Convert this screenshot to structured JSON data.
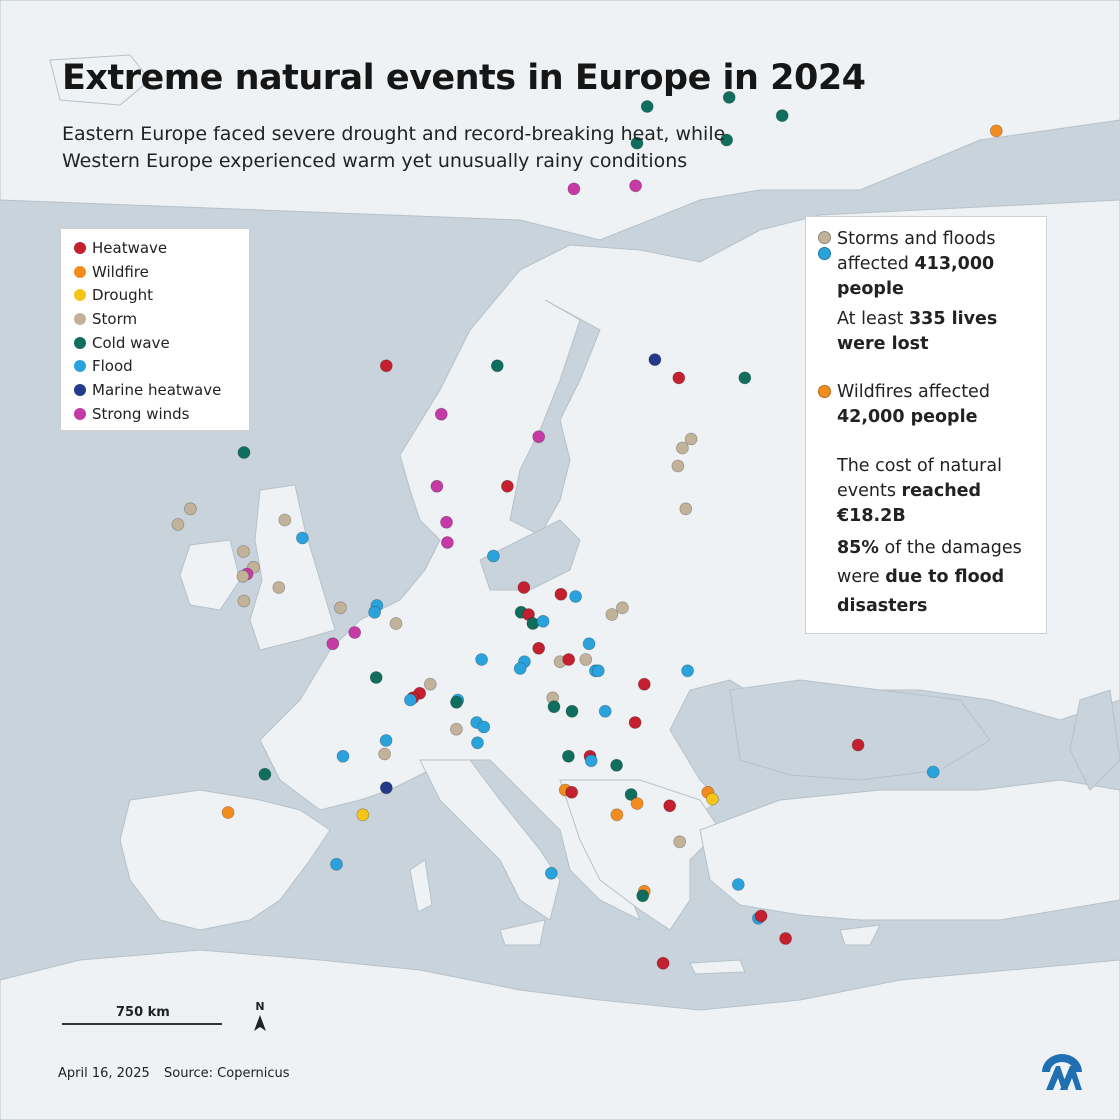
{
  "title": "Extreme natural events in Europe in 2024",
  "subtitle": {
    "line1": "Eastern Europe faced severe drought and record-breaking heat, while",
    "line2": "Western Europe experienced warm yet unusually rainy conditions"
  },
  "colors": {
    "heatwave": "#c4202f",
    "wildfire": "#f28c1e",
    "drought": "#f5c518",
    "storm": "#c2b29a",
    "cold_wave": "#0f6e5d",
    "flood": "#2aa3dc",
    "marine_heatwave": "#233a8c",
    "strong_winds": "#c53aa6",
    "sea": "#c9d3db",
    "land": "#eef2f4"
  },
  "legend": [
    {
      "key": "heatwave",
      "label": "Heatwave"
    },
    {
      "key": "wildfire",
      "label": "Wildfire"
    },
    {
      "key": "drought",
      "label": "Drought"
    },
    {
      "key": "storm",
      "label": "Storm"
    },
    {
      "key": "cold_wave",
      "label": "Cold wave"
    },
    {
      "key": "flood",
      "label": "Flood"
    },
    {
      "key": "marine_heatwave",
      "label": "Marine heatwave"
    },
    {
      "key": "strong_winds",
      "label": "Strong winds"
    }
  ],
  "info": {
    "storms_text": "Storms and floods affected",
    "storms_value": "413,000 people",
    "lives_prefix": "At least",
    "lives_value": "335 lives were lost",
    "wildfire_text": "Wildfires affected",
    "wildfire_value": "42,000 people",
    "cost_text": "The cost of natural events",
    "cost_bold": "reached €18.2B",
    "damages_pct": "85%",
    "damages_text": "of the damages were",
    "damages_bold": "due to flood disasters"
  },
  "scale_label": "750 km",
  "north_label": "N",
  "footer": {
    "date": "April 16, 2025",
    "source": "Source: Copernicus"
  },
  "events": [
    {
      "type": "cold_wave",
      "lon": 21.0,
      "lat": 69.5
    },
    {
      "type": "cold_wave",
      "lon": 25.5,
      "lat": 69.8
    },
    {
      "type": "cold_wave",
      "lon": 28.5,
      "lat": 69.2
    },
    {
      "type": "cold_wave",
      "lon": 20.5,
      "lat": 68.3
    },
    {
      "type": "cold_wave",
      "lon": 25.5,
      "lat": 68.4
    },
    {
      "type": "wildfire",
      "lon": 40.5,
      "lat": 68.7
    },
    {
      "type": "strong_winds",
      "lon": 17.0,
      "lat": 66.8
    },
    {
      "type": "strong_winds",
      "lon": 20.5,
      "lat": 66.9
    },
    {
      "type": "heatwave",
      "lon": 5.8,
      "lat": 61.0
    },
    {
      "type": "cold_wave",
      "lon": 12.5,
      "lat": 61.0
    },
    {
      "type": "marine_heatwave",
      "lon": 22.0,
      "lat": 61.2
    },
    {
      "type": "heatwave",
      "lon": 23.5,
      "lat": 60.6
    },
    {
      "type": "cold_wave",
      "lon": 27.5,
      "lat": 60.6
    },
    {
      "type": "strong_winds",
      "lon": 9.0,
      "lat": 59.2
    },
    {
      "type": "strong_winds",
      "lon": 15.0,
      "lat": 58.2
    },
    {
      "type": "cold_wave",
      "lon": -3.5,
      "lat": 57.5
    },
    {
      "type": "storm",
      "lon": 24.5,
      "lat": 58.1
    },
    {
      "type": "storm",
      "lon": 24.0,
      "lat": 57.7
    },
    {
      "type": "storm",
      "lon": 23.8,
      "lat": 56.9
    },
    {
      "type": "storm",
      "lon": -7.5,
      "lat": 55.0
    },
    {
      "type": "storm",
      "lon": -8.5,
      "lat": 54.3
    },
    {
      "type": "storm",
      "lon": -1.5,
      "lat": 54.5
    },
    {
      "type": "flood",
      "lon": -0.5,
      "lat": 53.7
    },
    {
      "type": "strong_winds",
      "lon": 8.5,
      "lat": 56.0
    },
    {
      "type": "heatwave",
      "lon": 13.0,
      "lat": 56.0
    },
    {
      "type": "storm",
      "lon": 24.5,
      "lat": 55.0
    },
    {
      "type": "strong_winds",
      "lon": 9.0,
      "lat": 54.4
    },
    {
      "type": "strong_winds",
      "lon": 9.0,
      "lat": 53.5
    },
    {
      "type": "flood",
      "lon": 12.0,
      "lat": 52.9
    },
    {
      "type": "storm",
      "lon": -4.5,
      "lat": 53.1
    },
    {
      "type": "storm",
      "lon": -4.0,
      "lat": 52.4
    },
    {
      "type": "strong_winds",
      "lon": -4.5,
      "lat": 52.1
    },
    {
      "type": "storm",
      "lon": -4.8,
      "lat": 52.0
    },
    {
      "type": "storm",
      "lon": -2.5,
      "lat": 51.5
    },
    {
      "type": "storm",
      "lon": -5.0,
      "lat": 50.9
    },
    {
      "type": "storm",
      "lon": 1.5,
      "lat": 50.6
    },
    {
      "type": "flood",
      "lon": 4.0,
      "lat": 50.7
    },
    {
      "type": "flood",
      "lon": 3.8,
      "lat": 50.4
    },
    {
      "type": "storm",
      "lon": 5.2,
      "lat": 49.9
    },
    {
      "type": "heatwave",
      "lon": 14.0,
      "lat": 51.5
    },
    {
      "type": "heatwave",
      "lon": 16.5,
      "lat": 51.2
    },
    {
      "type": "flood",
      "lon": 17.5,
      "lat": 51.1
    },
    {
      "type": "cold_wave",
      "lon": 13.8,
      "lat": 50.4
    },
    {
      "type": "heatwave",
      "lon": 14.3,
      "lat": 50.3
    },
    {
      "type": "cold_wave",
      "lon": 14.6,
      "lat": 49.9
    },
    {
      "type": "flood",
      "lon": 15.3,
      "lat": 50.0
    },
    {
      "type": "storm",
      "lon": 20.0,
      "lat": 50.3
    },
    {
      "type": "storm",
      "lon": 20.7,
      "lat": 50.6
    },
    {
      "type": "strong_winds",
      "lon": 0.7,
      "lat": 49.0
    },
    {
      "type": "strong_winds",
      "lon": 2.3,
      "lat": 49.5
    },
    {
      "type": "heatwave",
      "lon": 15.0,
      "lat": 48.8
    },
    {
      "type": "flood",
      "lon": 18.5,
      "lat": 49.0
    },
    {
      "type": "flood",
      "lon": 11.0,
      "lat": 48.3
    },
    {
      "type": "flood",
      "lon": 14.0,
      "lat": 48.2
    },
    {
      "type": "flood",
      "lon": 13.7,
      "lat": 47.9
    },
    {
      "type": "storm",
      "lon": 16.5,
      "lat": 48.2
    },
    {
      "type": "heatwave",
      "lon": 17.1,
      "lat": 48.3
    },
    {
      "type": "storm",
      "lon": 18.3,
      "lat": 48.3
    },
    {
      "type": "flood",
      "lon": 19.0,
      "lat": 47.8
    },
    {
      "type": "flood",
      "lon": 19.2,
      "lat": 47.8
    },
    {
      "type": "cold_wave",
      "lon": 3.5,
      "lat": 47.5
    },
    {
      "type": "flood",
      "lon": 25.5,
      "lat": 47.8
    },
    {
      "type": "heatwave",
      "lon": 22.5,
      "lat": 47.2
    },
    {
      "type": "storm",
      "lon": 7.3,
      "lat": 47.2
    },
    {
      "type": "heatwave",
      "lon": 6.5,
      "lat": 46.8
    },
    {
      "type": "heatwave",
      "lon": 6.0,
      "lat": 46.6
    },
    {
      "type": "flood",
      "lon": 5.8,
      "lat": 46.5
    },
    {
      "type": "flood",
      "lon": 9.2,
      "lat": 46.5
    },
    {
      "type": "cold_wave",
      "lon": 9.1,
      "lat": 46.4
    },
    {
      "type": "storm",
      "lon": 16.0,
      "lat": 46.6
    },
    {
      "type": "cold_wave",
      "lon": 16.1,
      "lat": 46.2
    },
    {
      "type": "cold_wave",
      "lon": 17.4,
      "lat": 46.0
    },
    {
      "type": "flood",
      "lon": 19.8,
      "lat": 46.0
    },
    {
      "type": "heatwave",
      "lon": 22.0,
      "lat": 45.5
    },
    {
      "type": "storm",
      "lon": 9.0,
      "lat": 45.2
    },
    {
      "type": "flood",
      "lon": 10.5,
      "lat": 45.5
    },
    {
      "type": "flood",
      "lon": 11.0,
      "lat": 45.3
    },
    {
      "type": "flood",
      "lon": 10.5,
      "lat": 44.6
    },
    {
      "type": "flood",
      "lon": 3.8,
      "lat": 44.7
    },
    {
      "type": "storm",
      "lon": 3.6,
      "lat": 44.1
    },
    {
      "type": "flood",
      "lon": 0.5,
      "lat": 44.0
    },
    {
      "type": "cold_wave",
      "lon": 17.2,
      "lat": 44.0
    },
    {
      "type": "heatwave",
      "lon": 18.8,
      "lat": 44.0
    },
    {
      "type": "flood",
      "lon": 18.9,
      "lat": 43.8
    },
    {
      "type": "cold_wave",
      "lon": 20.8,
      "lat": 43.6
    },
    {
      "type": "cold_wave",
      "lon": -5.5,
      "lat": 43.2
    },
    {
      "type": "marine_heatwave",
      "lon": 3.5,
      "lat": 42.6
    },
    {
      "type": "wildfire",
      "lon": 17.0,
      "lat": 42.5
    },
    {
      "type": "heatwave",
      "lon": 17.5,
      "lat": 42.4
    },
    {
      "type": "cold_wave",
      "lon": 22.0,
      "lat": 42.3
    },
    {
      "type": "wildfire",
      "lon": 22.5,
      "lat": 41.9
    },
    {
      "type": "heatwave",
      "lon": 25.0,
      "lat": 41.8
    },
    {
      "type": "wildfire",
      "lon": 21.0,
      "lat": 41.4
    },
    {
      "type": "wildfire",
      "lon": 27.8,
      "lat": 42.4
    },
    {
      "type": "drought",
      "lon": 28.2,
      "lat": 42.1
    },
    {
      "type": "drought",
      "lon": 1.5,
      "lat": 41.4
    },
    {
      "type": "wildfire",
      "lon": -8.8,
      "lat": 41.5
    },
    {
      "type": "storm",
      "lon": 26.0,
      "lat": 40.2
    },
    {
      "type": "flood",
      "lon": -1.0,
      "lat": 39.2
    },
    {
      "type": "wildfire",
      "lon": 23.5,
      "lat": 38.0
    },
    {
      "type": "cold_wave",
      "lon": 23.4,
      "lat": 37.8
    },
    {
      "type": "flood",
      "lon": 31.0,
      "lat": 38.3
    },
    {
      "type": "flood",
      "lon": 16.0,
      "lat": 38.8
    },
    {
      "type": "flood",
      "lon": 33.0,
      "lat": 36.8
    },
    {
      "type": "heatwave",
      "lon": 33.2,
      "lat": 36.9
    },
    {
      "type": "heatwave",
      "lon": 35.5,
      "lat": 35.9
    },
    {
      "type": "heatwave",
      "lon": 25.5,
      "lat": 34.8
    },
    {
      "type": "heatwave",
      "lon": 38.5,
      "lat": 44.5
    },
    {
      "type": "flood",
      "lon": 44.5,
      "lat": 43.3
    }
  ]
}
